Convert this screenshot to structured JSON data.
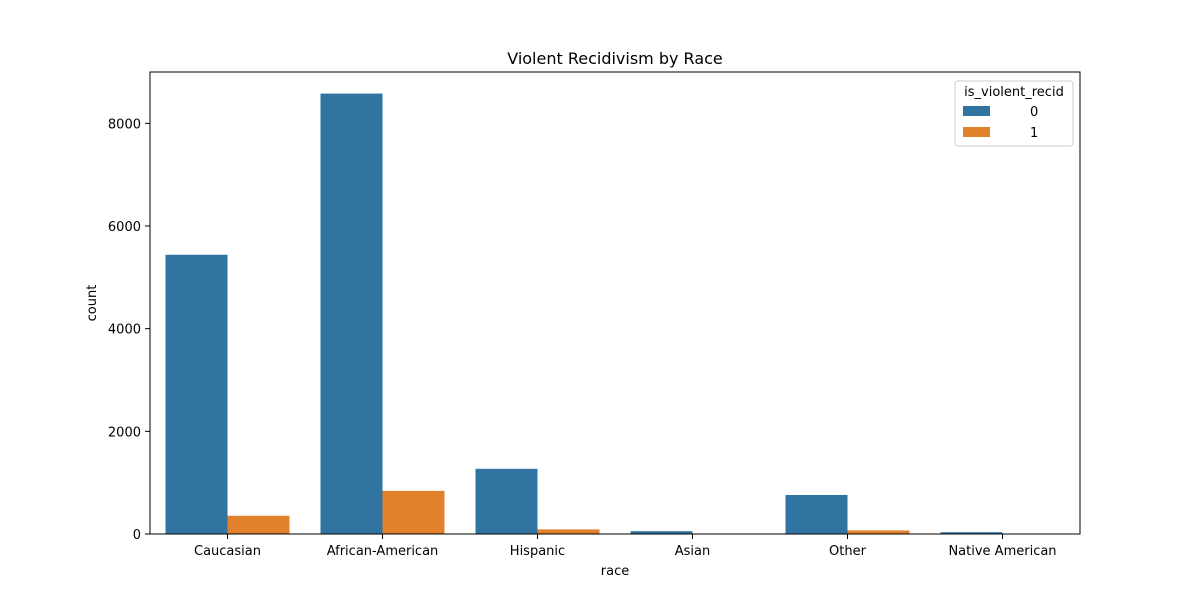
{
  "chart_data": {
    "type": "bar",
    "title": "Violent Recidivism by Race",
    "xlabel": "race",
    "ylabel": "count",
    "categories": [
      "Caucasian",
      "African-American",
      "Hispanic",
      "Asian",
      "Other",
      "Native American"
    ],
    "series": [
      {
        "name": "0",
        "color": "#3274a1",
        "values": [
          5440,
          8580,
          1270,
          55,
          760,
          35
        ]
      },
      {
        "name": "1",
        "color": "#e1812c",
        "values": [
          355,
          840,
          90,
          3,
          70,
          5
        ]
      }
    ],
    "ylim": [
      0,
      9000
    ],
    "yticks": [
      0,
      2000,
      4000,
      6000,
      8000
    ],
    "grid": false,
    "legend": {
      "title": "is_violent_recid",
      "placement": "top-right"
    }
  }
}
